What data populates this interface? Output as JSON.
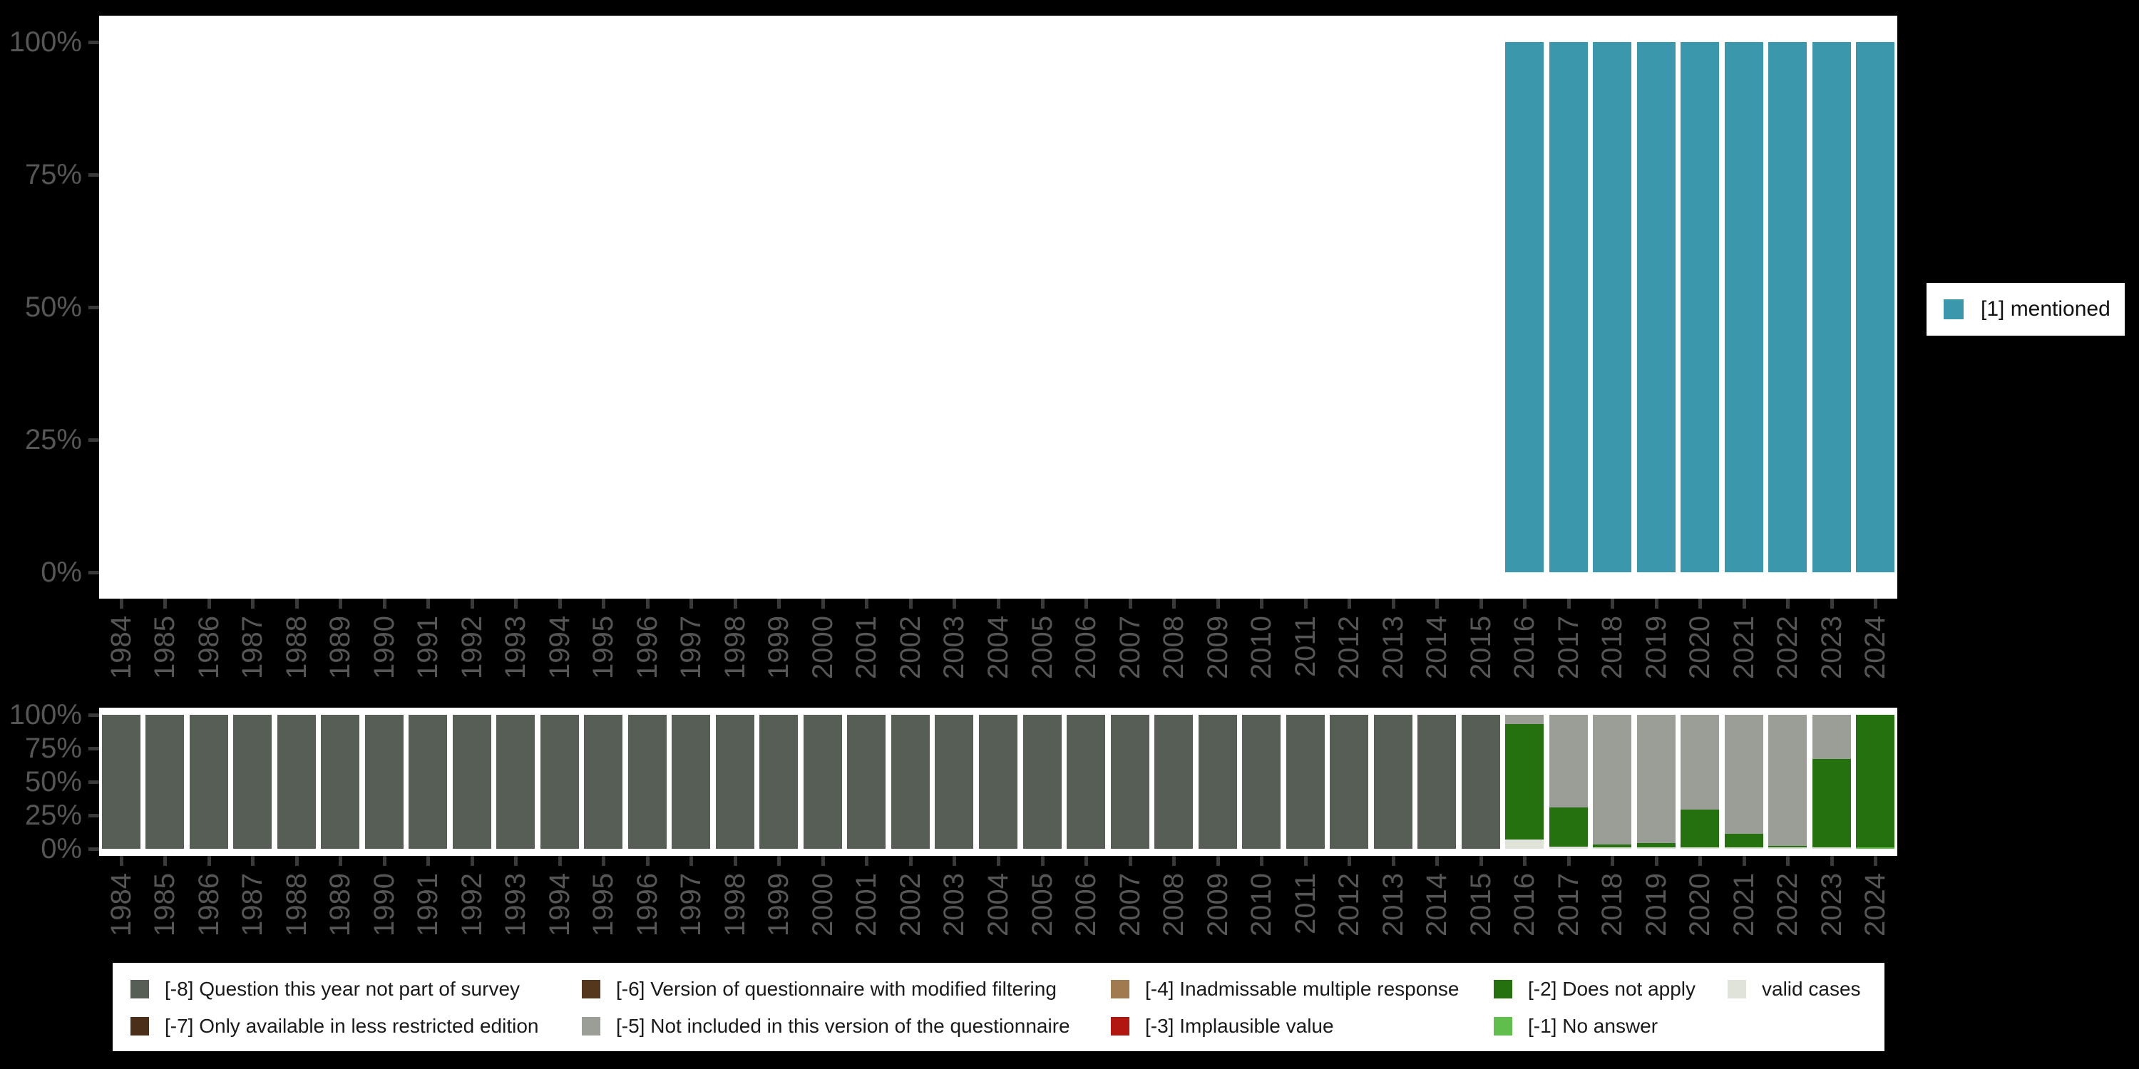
{
  "colors": {
    "page_bg": "#000000",
    "plot_bg": "#ffffff",
    "axis_text": "#565656",
    "tick_mark": "#3a3a3a",
    "legend_text": "#1a1a1a"
  },
  "legend_top": {
    "label": "[1] mentioned",
    "color": "#3b97ac"
  },
  "legend_bottom": {
    "items": [
      {
        "id": "-8",
        "label": "[-8] Question this year not part of survey",
        "color": "#575e56"
      },
      {
        "id": "-7",
        "label": "[-7] Only available in less restricted edition",
        "color": "#4c2f19"
      },
      {
        "id": "-6",
        "label": "[-6] Version of questionnaire with modified filtering",
        "color": "#55371e"
      },
      {
        "id": "-5",
        "label": "[-5] Not included in this version of the questionnaire",
        "color": "#9a9e96"
      },
      {
        "id": "-4",
        "label": "[-4] Inadmissable multiple response",
        "color": "#a17a50"
      },
      {
        "id": "-3",
        "label": "[-3] Implausible value",
        "color": "#b11610"
      },
      {
        "id": "-2",
        "label": "[-2] Does not apply",
        "color": "#26710f"
      },
      {
        "id": "-1",
        "label": "[-1] No answer",
        "color": "#5fbe4c"
      },
      {
        "id": "valid",
        "label": "valid cases",
        "color": "#dfe3da"
      }
    ]
  },
  "chart_data": [
    {
      "id": "mentioned-by-year",
      "type": "bar",
      "stacked": true,
      "title": "",
      "xlabel": "",
      "ylabel": "",
      "ylim": [
        0,
        100
      ],
      "grid": false,
      "legend_position": "right",
      "ytick_labels": [
        "100%",
        "75%",
        "50%",
        "25%",
        "0%"
      ],
      "categories": [
        "1984",
        "1985",
        "1986",
        "1987",
        "1988",
        "1989",
        "1990",
        "1991",
        "1992",
        "1993",
        "1994",
        "1995",
        "1996",
        "1997",
        "1998",
        "1999",
        "2000",
        "2001",
        "2002",
        "2003",
        "2004",
        "2005",
        "2006",
        "2007",
        "2008",
        "2009",
        "2010",
        "2011",
        "2012",
        "2013",
        "2014",
        "2015",
        "2016",
        "2017",
        "2018",
        "2019",
        "2020",
        "2021",
        "2022",
        "2023",
        "2024"
      ],
      "series": [
        {
          "name": "[1] mentioned",
          "color": "#3b97ac",
          "values": [
            0,
            0,
            0,
            0,
            0,
            0,
            0,
            0,
            0,
            0,
            0,
            0,
            0,
            0,
            0,
            0,
            0,
            0,
            0,
            0,
            0,
            0,
            0,
            0,
            0,
            0,
            0,
            0,
            0,
            0,
            0,
            0,
            100,
            100,
            100,
            100,
            100,
            100,
            100,
            100,
            100
          ]
        }
      ]
    },
    {
      "id": "missing-values-by-year",
      "type": "bar",
      "stacked": true,
      "stack_order": "bottom-to-top",
      "title": "",
      "xlabel": "",
      "ylabel": "",
      "ylim": [
        0,
        100
      ],
      "grid": false,
      "legend_position": "bottom",
      "ytick_labels": [
        "100%",
        "75%",
        "50%",
        "25%",
        "0%"
      ],
      "categories": [
        "1984",
        "1985",
        "1986",
        "1987",
        "1988",
        "1989",
        "1990",
        "1991",
        "1992",
        "1993",
        "1994",
        "1995",
        "1996",
        "1997",
        "1998",
        "1999",
        "2000",
        "2001",
        "2002",
        "2003",
        "2004",
        "2005",
        "2006",
        "2007",
        "2008",
        "2009",
        "2010",
        "2011",
        "2012",
        "2013",
        "2014",
        "2015",
        "2016",
        "2017",
        "2018",
        "2019",
        "2020",
        "2021",
        "2022",
        "2023",
        "2024"
      ],
      "series": [
        {
          "name": "valid cases",
          "color": "#dfe3da",
          "values": [
            0,
            0,
            0,
            0,
            0,
            0,
            0,
            0,
            0,
            0,
            0,
            0,
            0,
            0,
            0,
            0,
            0,
            0,
            0,
            0,
            0,
            0,
            0,
            0,
            0,
            0,
            0,
            0,
            0,
            0,
            0,
            0,
            7,
            2,
            1,
            1,
            1,
            1,
            1,
            1,
            0
          ]
        },
        {
          "name": "[-1] No answer",
          "color": "#5fbe4c",
          "values": [
            0,
            0,
            0,
            0,
            0,
            0,
            0,
            0,
            0,
            0,
            0,
            0,
            0,
            0,
            0,
            0,
            0,
            0,
            0,
            0,
            0,
            0,
            0,
            0,
            0,
            0,
            0,
            0,
            0,
            0,
            0,
            0,
            0,
            0,
            0,
            0,
            0,
            0,
            0,
            0,
            1
          ]
        },
        {
          "name": "[-2] Does not apply",
          "color": "#26710f",
          "values": [
            0,
            0,
            0,
            0,
            0,
            0,
            0,
            0,
            0,
            0,
            0,
            0,
            0,
            0,
            0,
            0,
            0,
            0,
            0,
            0,
            0,
            0,
            0,
            0,
            0,
            0,
            0,
            0,
            0,
            0,
            0,
            0,
            86,
            29,
            2,
            3,
            28,
            10,
            1,
            66,
            99
          ]
        },
        {
          "name": "[-5] Not included in this version of the questionnaire",
          "color": "#9a9e96",
          "values": [
            0,
            0,
            0,
            0,
            0,
            0,
            0,
            0,
            0,
            0,
            0,
            0,
            0,
            0,
            0,
            0,
            0,
            0,
            0,
            0,
            0,
            0,
            0,
            0,
            0,
            0,
            0,
            0,
            0,
            0,
            0,
            0,
            7,
            69,
            97,
            96,
            71,
            89,
            98,
            33,
            0
          ]
        },
        {
          "name": "[-8] Question this year not part of survey",
          "color": "#575e56",
          "values": [
            100,
            100,
            100,
            100,
            100,
            100,
            100,
            100,
            100,
            100,
            100,
            100,
            100,
            100,
            100,
            100,
            100,
            100,
            100,
            100,
            100,
            100,
            100,
            100,
            100,
            100,
            100,
            100,
            100,
            100,
            100,
            100,
            0,
            0,
            0,
            0,
            0,
            0,
            0,
            0,
            0
          ]
        }
      ]
    }
  ]
}
